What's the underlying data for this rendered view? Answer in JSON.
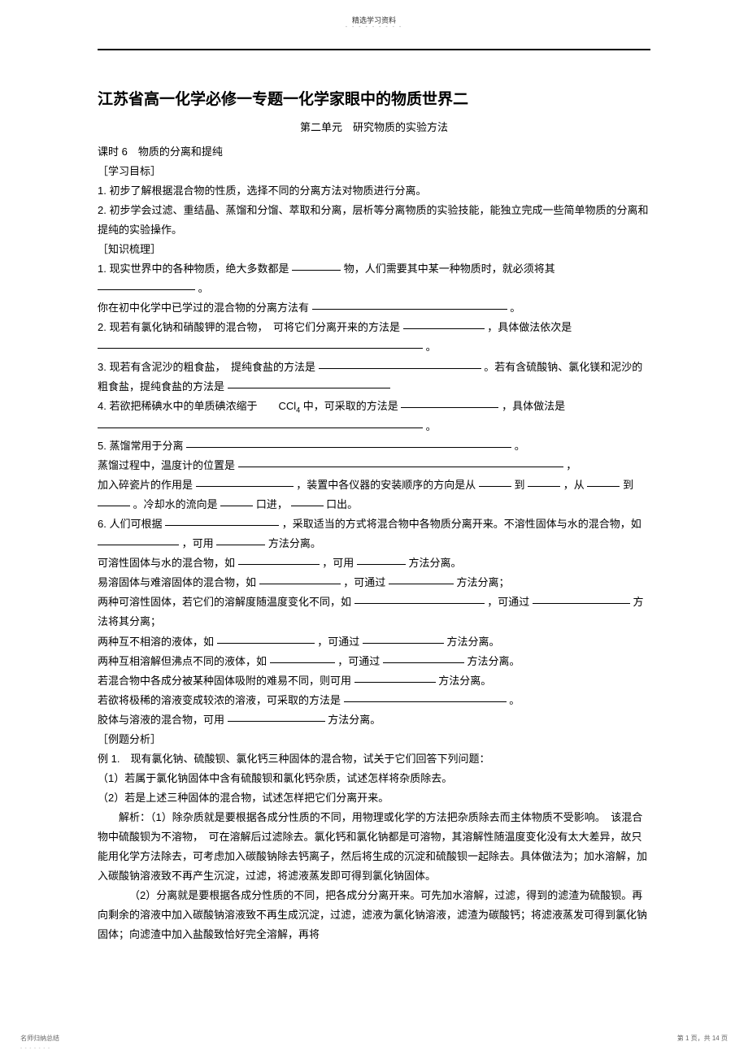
{
  "header": {
    "label": "精选学习资料",
    "dots": "- - - - - - - - -"
  },
  "title": "江苏省高一化学必修一专题一化学家眼中的物质世界二",
  "subtitle": "第二单元　研究物质的实验方法",
  "lesson": "课时 6　物质的分离和提纯",
  "section_goals": "［学习目标］",
  "goals": {
    "g1": "1. 初步了解根据混合物的性质，选择不同的分离方法对物质进行分离。",
    "g2": "2. 初步学会过滤、重结晶、蒸馏和分馏、萃取和分离，层析等分离物质的实验技能，能独立完成一些简单物质的分离和提纯的实验操作。"
  },
  "section_knowledge": "［知识梳理］",
  "k1_a": "1. 现实世界中的各种物质，绝大多数都是",
  "k1_b": "物，人们需要其中某一种物质时，就必须将其",
  "k1_c": "。",
  "k1_d": "你在初中化学中已学过的混合物的分离方法有",
  "k1_e": "。",
  "k2_a": "2. 现若有氯化钠和硝酸钾的混合物，　可将它们分离开来的方法是",
  "k2_b": "，具体做法依次是",
  "k2_c": "。",
  "k3_a": "3. 现若有含泥沙的粗食盐，　提纯食盐的方法是",
  "k3_b": "。若有含硫酸钠、氯化镁和泥沙的粗食盐，提纯食盐的方法是",
  "k4_a": "4. 若欲把稀碘水中的单质碘浓缩于　　CCl",
  "k4_sub": "4",
  "k4_b": " 中，可采取的方法是",
  "k4_c": "，具体做法是",
  "k4_d": "。",
  "k5_a": "5. 蒸馏常用于分离",
  "k5_b": "。",
  "k5_c": "蒸馏过程中，温度计的位置是",
  "k5_d": "，",
  "k5_e": "加入碎瓷片的作用是",
  "k5_f": "，装置中各仪器的安装顺序的方向是从",
  "k5_g": "到",
  "k5_h": "，从",
  "k5_i": "到",
  "k5_j": "。冷却水的流向是",
  "k5_k": "口进，",
  "k5_l": "口出。",
  "k6_a": "6. 人们可根据",
  "k6_b": "，采取适当的方式将混合物中各物质分离开来。不溶性固体与水的混合物，如",
  "k6_c": "，可用",
  "k6_d": "方法分离。",
  "k6_e": "可溶性固体与水的混合物，如",
  "k6_f": "，可用",
  "k6_g": "方法分离。",
  "k6_h": "易溶固体与难溶固体的混合物，如",
  "k6_i": "，可通过",
  "k6_j": "方法分离；",
  "k6_k": "两种可溶性固体，若它们的溶解度随温度变化不同，如",
  "k6_l": "，可通过",
  "k6_m": "方法将其分离；",
  "k6_n": "两种互不相溶的液体，如",
  "k6_o": "，可通过",
  "k6_p": "方法分离。",
  "k6_q": "两种互相溶解但沸点不同的液体，如",
  "k6_r": "，可通过",
  "k6_s": "方法分离。",
  "k6_t": "若混合物中各成分被某种固体吸附的难易不同，则可用",
  "k6_u": "方法分离。",
  "k6_v": "若欲将极稀的溶液变成较浓的溶液，可采取的方法是",
  "k6_w": "。",
  "k6_x": "胶体与溶液的混合物，可用",
  "k6_y": "方法分离。",
  "section_examples": "［例题分析］",
  "ex1": "例 1.　现有氯化钠、硫酸钡、氯化钙三种固体的混合物，试关于它们回答下列问题：",
  "ex1_q1": "（1）若属于氯化钠固体中含有硫酸钡和氯化钙杂质，试述怎样将杂质除去。",
  "ex1_q2": "（2）若是上述三种固体的混合物，试述怎样把它们分离开来。",
  "ex1_ans1": "解析：（1）除杂质就是要根据各成分性质的不同，用物理或化学的方法把杂质除去而主体物质不受影响。　该混合物中硫酸钡为不溶物，　可在溶解后过滤除去。氯化钙和氯化钠都是可溶物，其溶解性随温度变化没有太大差异，故只能用化学方法除去，可考虑加入碳酸钠除去钙离子，然后将生成的沉淀和硫酸钡一起除去。具体做法为；加水溶解，加入碳酸钠溶液致不再产生沉淀，过滤，将滤液蒸发即可得到氯化钠固体。",
  "ex1_ans2": "（2）分离就是要根据各成分性质的不同，把各成分分离开来。可先加水溶解，过滤，得到的滤渣为硫酸钡。再向剩余的溶液中加入碳酸钠溶液致不再生成沉淀，过滤，滤液为氯化钠溶液，滤渣为碳酸钙；将滤液蒸发可得到氯化钠固体；向滤渣中加入盐酸致恰好完全溶解，再将",
  "footer": {
    "left": "名师归纳总结",
    "left_dots": "- - - - - - -",
    "right_a": "第 ",
    "right_page": "1",
    "right_b": " 页，共 ",
    "right_total": "14",
    "right_c": " 页"
  },
  "colors": {
    "text": "#000000",
    "bg": "#ffffff",
    "border": "#000000"
  }
}
